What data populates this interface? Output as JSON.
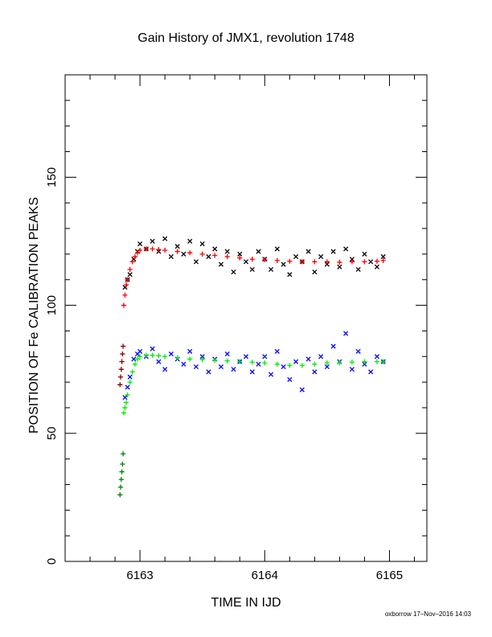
{
  "chart_data": {
    "type": "scatter",
    "title": "Gain History of JMX1, revolution 1748",
    "xlabel": "TIME IN IJD",
    "ylabel": "POSITION OF Fe CALIBRATION PEAKS",
    "xlim": [
      6162.4,
      6165.3
    ],
    "ylim": [
      0,
      190
    ],
    "x_ticks": [
      6163,
      6164,
      6165
    ],
    "x_tick_labels": [
      "6163",
      "6164",
      "6165"
    ],
    "y_ticks": [
      0,
      50,
      100,
      150
    ],
    "y_tick_labels": [
      "0",
      "50",
      "100",
      "150"
    ],
    "grid": false,
    "footer": "oxborrow 17–Nov–2016 14:03",
    "series": [
      {
        "marker": "x",
        "color": "#000000",
        "x": [
          6162.88,
          6162.9,
          6162.92,
          6162.95,
          6162.98,
          6163.0,
          6163.05,
          6163.1,
          6163.15,
          6163.2,
          6163.25,
          6163.3,
          6163.35,
          6163.4,
          6163.45,
          6163.5,
          6163.55,
          6163.6,
          6163.65,
          6163.7,
          6163.75,
          6163.8,
          6163.85,
          6163.9,
          6163.95,
          6164.0,
          6164.05,
          6164.1,
          6164.15,
          6164.2,
          6164.25,
          6164.3,
          6164.35,
          6164.4,
          6164.45,
          6164.5,
          6164.55,
          6164.6,
          6164.65,
          6164.7,
          6164.75,
          6164.8,
          6164.85,
          6164.9,
          6164.95
        ],
        "y": [
          107,
          110,
          112,
          118,
          121,
          124,
          122,
          125,
          121,
          126,
          119,
          123,
          120,
          125,
          117,
          124,
          119,
          122,
          116,
          121,
          113,
          120,
          117,
          114,
          121,
          118,
          114,
          122,
          116,
          112,
          119,
          117,
          121,
          113,
          119,
          116,
          121,
          115,
          122,
          118,
          114,
          120,
          117,
          115,
          119
        ]
      },
      {
        "marker": "+",
        "color": "#8b0000",
        "x": [
          6162.84,
          6162.845,
          6162.85,
          6162.855,
          6162.86,
          6162.865
        ],
        "y": [
          69,
          72,
          75,
          78,
          81,
          84
        ]
      },
      {
        "marker": "+",
        "color": "#ff0000",
        "x": [
          6162.87,
          6162.88,
          6162.89,
          6162.9,
          6162.92,
          6162.94,
          6162.96,
          6162.98,
          6163.0,
          6163.05,
          6163.1,
          6163.15,
          6163.2,
          6163.3,
          6163.4,
          6163.5,
          6163.6,
          6163.7,
          6163.8,
          6163.9,
          6164.0,
          6164.1,
          6164.2,
          6164.3,
          6164.4,
          6164.5,
          6164.6,
          6164.7,
          6164.8,
          6164.9,
          6164.95
        ],
        "y": [
          100,
          104,
          108,
          110,
          114,
          117,
          119,
          120.5,
          121.5,
          122,
          122,
          121.8,
          121.5,
          121,
          120.5,
          120,
          119.5,
          119,
          118.5,
          118,
          117.8,
          117.5,
          117.2,
          117,
          117,
          117,
          116.8,
          117,
          117,
          117.2,
          117.5
        ]
      },
      {
        "marker": "x",
        "color": "#0000ff",
        "x": [
          6162.88,
          6162.9,
          6162.92,
          6162.95,
          6162.98,
          6163.0,
          6163.05,
          6163.1,
          6163.15,
          6163.2,
          6163.25,
          6163.3,
          6163.35,
          6163.4,
          6163.45,
          6163.5,
          6163.55,
          6163.6,
          6163.65,
          6163.7,
          6163.75,
          6163.8,
          6163.85,
          6163.9,
          6163.95,
          6164.0,
          6164.05,
          6164.1,
          6164.15,
          6164.2,
          6164.25,
          6164.3,
          6164.35,
          6164.4,
          6164.45,
          6164.5,
          6164.55,
          6164.6,
          6164.65,
          6164.7,
          6164.75,
          6164.8,
          6164.85,
          6164.9,
          6164.95
        ],
        "y": [
          64,
          68,
          72,
          79,
          81,
          82,
          80,
          83,
          78,
          75,
          81,
          79,
          77,
          82,
          76,
          80,
          74,
          79,
          76,
          81,
          75,
          78,
          80,
          74,
          77,
          80,
          73,
          82,
          76,
          71,
          78,
          67,
          79,
          74,
          80,
          76,
          84,
          78,
          89,
          75,
          82,
          77,
          74,
          80,
          78
        ]
      },
      {
        "marker": "+",
        "color": "#008000",
        "x": [
          6162.84,
          6162.845,
          6162.85,
          6162.855,
          6162.86,
          6162.865
        ],
        "y": [
          26,
          29,
          32,
          35,
          38,
          42
        ]
      },
      {
        "marker": "+",
        "color": "#00ee00",
        "x": [
          6162.87,
          6162.88,
          6162.89,
          6162.9,
          6162.92,
          6162.94,
          6162.96,
          6162.98,
          6163.0,
          6163.05,
          6163.1,
          6163.15,
          6163.2,
          6163.3,
          6163.4,
          6163.5,
          6163.6,
          6163.7,
          6163.8,
          6163.9,
          6164.0,
          6164.1,
          6164.2,
          6164.3,
          6164.4,
          6164.5,
          6164.6,
          6164.7,
          6164.8,
          6164.9,
          6164.95
        ],
        "y": [
          58,
          60,
          62,
          65,
          70,
          74,
          77,
          79,
          80,
          80.5,
          80.5,
          80.3,
          80,
          79.5,
          79,
          78.8,
          78.5,
          78.3,
          78,
          77.8,
          77.5,
          77,
          76.5,
          76.5,
          77,
          77.5,
          77.5,
          77.8,
          78,
          78,
          78
        ]
      }
    ]
  }
}
